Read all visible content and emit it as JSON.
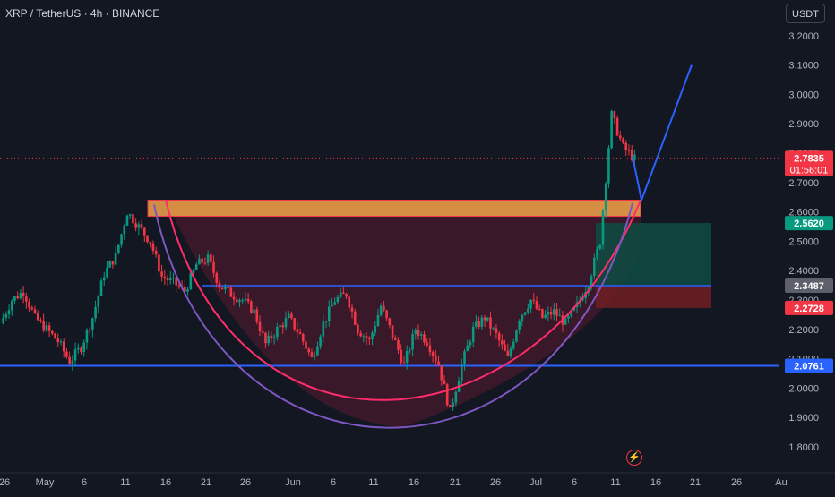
{
  "header": {
    "symbol_title": "XRP / TetherUS · 4h · BINANCE",
    "currency_button": "USDT"
  },
  "colors": {
    "background": "#131722",
    "up_candle": "#089981",
    "down_candle": "#f23645",
    "cup_fill": "#5a1a30",
    "resistance_zone": "#f2a34a",
    "blue_line": "#2962ff",
    "purple_curve": "#7e57c2",
    "pink_curve": "#ff2d6a",
    "target_zone": "#0e4c42",
    "stop_zone": "#6b1e24",
    "projection": "#2962ff"
  },
  "chart_data": {
    "type": "candlestick",
    "symbol": "XRP / TetherUS",
    "timeframe": "4h",
    "exchange": "BINANCE",
    "ylim": [
      1.75,
      3.25
    ],
    "y_ticks": [
      3.2,
      3.1,
      3.0,
      2.9,
      2.8,
      2.7,
      2.6,
      2.5,
      2.4,
      2.3,
      2.2,
      2.1,
      2.0,
      1.9,
      1.8
    ],
    "x_ticks": [
      "26",
      "May",
      "6",
      "11",
      "16",
      "21",
      "26",
      "Jun",
      "6",
      "11",
      "16",
      "21",
      "26",
      "Jul",
      "6",
      "11",
      "16",
      "21",
      "26",
      "Au"
    ],
    "price_labels": [
      {
        "value": "2.7835",
        "sub": "01:56:01",
        "color": "#f23645",
        "price": 2.7835
      },
      {
        "value": "2.5620",
        "color": "#089981",
        "price": 2.562
      },
      {
        "value": "2.3487",
        "color": "#5d606b",
        "price": 2.3487
      },
      {
        "value": "2.2728",
        "color": "#f23645",
        "price": 2.2728
      },
      {
        "value": "2.0761",
        "color": "#2962ff",
        "price": 2.0761
      }
    ],
    "price_path": [
      [
        0,
        2.22
      ],
      [
        1,
        2.3
      ],
      [
        2,
        2.33
      ],
      [
        3,
        2.24
      ],
      [
        4,
        2.2
      ],
      [
        5,
        2.16
      ],
      [
        6,
        2.09
      ],
      [
        7,
        2.14
      ],
      [
        8,
        2.24
      ],
      [
        9,
        2.39
      ],
      [
        10,
        2.45
      ],
      [
        11,
        2.6
      ],
      [
        12,
        2.55
      ],
      [
        13,
        2.5
      ],
      [
        14,
        2.38
      ],
      [
        15,
        2.36
      ],
      [
        16,
        2.33
      ],
      [
        17,
        2.42
      ],
      [
        18,
        2.44
      ],
      [
        19,
        2.35
      ],
      [
        20,
        2.32
      ],
      [
        21,
        2.3
      ],
      [
        22,
        2.26
      ],
      [
        23,
        2.15
      ],
      [
        24,
        2.2
      ],
      [
        25,
        2.24
      ],
      [
        26,
        2.18
      ],
      [
        27,
        2.1
      ],
      [
        28,
        2.22
      ],
      [
        29,
        2.3
      ],
      [
        30,
        2.32
      ],
      [
        31,
        2.2
      ],
      [
        32,
        2.16
      ],
      [
        33,
        2.28
      ],
      [
        34,
        2.18
      ],
      [
        35,
        2.08
      ],
      [
        36,
        2.2
      ],
      [
        37,
        2.16
      ],
      [
        38,
        2.08
      ],
      [
        39,
        1.92
      ],
      [
        40,
        2.08
      ],
      [
        41,
        2.2
      ],
      [
        42,
        2.24
      ],
      [
        43,
        2.18
      ],
      [
        44,
        2.1
      ],
      [
        45,
        2.24
      ],
      [
        46,
        2.3
      ],
      [
        47,
        2.24
      ],
      [
        48,
        2.26
      ],
      [
        49,
        2.22
      ],
      [
        50,
        2.28
      ],
      [
        51,
        2.36
      ],
      [
        52,
        2.5
      ],
      [
        53,
        2.93
      ],
      [
        54,
        2.82
      ],
      [
        55,
        2.78
      ]
    ],
    "resistance_zone": {
      "top": 2.64,
      "bottom": 2.585
    },
    "neckline": 2.3487,
    "support_line": 2.0761,
    "cup_bottom": 1.87,
    "target_zone": {
      "top": 2.562,
      "bottom": 2.3487
    },
    "stop_zone": {
      "top": 2.3487,
      "bottom": 2.2728
    },
    "projection": [
      [
        2.79,
        2.64
      ],
      [
        3.1
      ]
    ]
  }
}
